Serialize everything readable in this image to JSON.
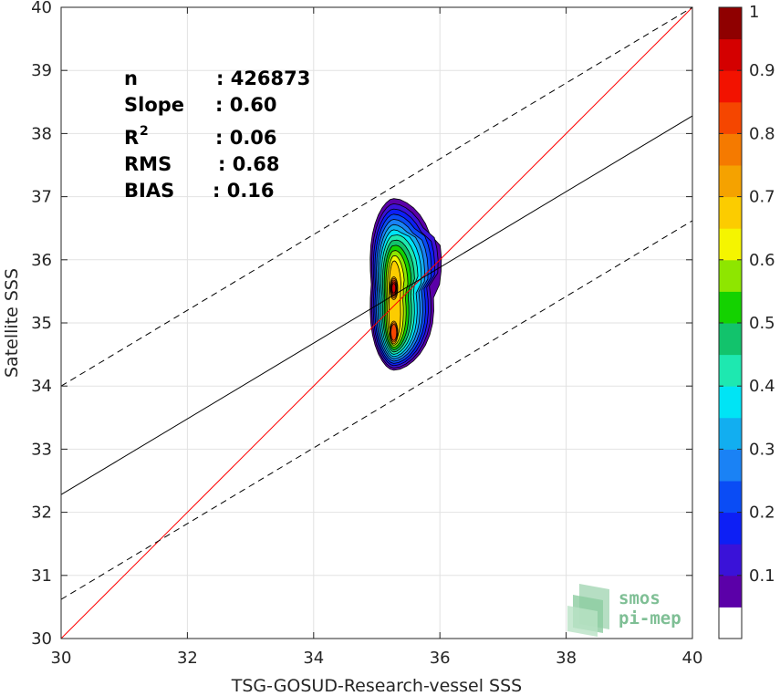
{
  "chart_data": {
    "type": "contour-scatter",
    "xlabel": "TSG-GOSUD-Research-vessel SSS",
    "ylabel": "Satellite SSS",
    "xlim": [
      30,
      40
    ],
    "ylim": [
      30,
      40
    ],
    "xticks": [
      "30",
      "32",
      "34",
      "36",
      "38",
      "40"
    ],
    "yticks": [
      "30",
      "31",
      "32",
      "33",
      "34",
      "35",
      "36",
      "37",
      "38",
      "39",
      "40"
    ],
    "grid": true,
    "stats": [
      {
        "label": "n",
        "sup": "",
        "value": ": 426873"
      },
      {
        "label": "Slope",
        "sup": "",
        "value": ": 0.60"
      },
      {
        "label": "R",
        "sup": "2",
        "value": ": 0.06"
      },
      {
        "label": "RMS",
        "sup": "",
        "value": ": 0.68"
      },
      {
        "label": "BIAS",
        "sup": "",
        "value": ": 0.16"
      }
    ],
    "lines": [
      {
        "role": "one-to-one",
        "color": "#ff0000",
        "style": "solid",
        "x": [
          30,
          40
        ],
        "y": [
          30,
          40
        ]
      },
      {
        "role": "regression",
        "color": "#000000",
        "style": "solid",
        "x": [
          30,
          40
        ],
        "y": [
          32.28,
          38.28
        ]
      },
      {
        "role": "regression-plus-offset",
        "color": "#000000",
        "style": "dashed",
        "x": [
          30,
          40
        ],
        "y": [
          34.0,
          40.0
        ]
      },
      {
        "role": "regression-minus-offset",
        "color": "#000000",
        "style": "dashed",
        "x": [
          30,
          40
        ],
        "y": [
          30.62,
          36.62
        ]
      }
    ],
    "density": {
      "center_x": 35.27,
      "outer_extent": {
        "x": [
          34.85,
          35.98
        ],
        "y": [
          34.25,
          36.97
        ]
      },
      "peaks": [
        {
          "x": 35.27,
          "y": 35.55,
          "level": 0.95
        },
        {
          "x": 35.27,
          "y": 34.85,
          "level": 0.85
        },
        {
          "x": 35.27,
          "y": 36.2,
          "level": 0.6
        }
      ]
    },
    "colorbar": {
      "ticks": [
        "0.1",
        "0.2",
        "0.3",
        "0.4",
        "0.5",
        "0.6",
        "0.7",
        "0.8",
        "0.9",
        "1"
      ],
      "colors": [
        "#ffffff",
        "#5b00a8",
        "#3a12d8",
        "#0d1ff5",
        "#0a4cf5",
        "#1a82f5",
        "#12aef0",
        "#00e4f5",
        "#1ee8b0",
        "#12c36c",
        "#14d200",
        "#8ee600",
        "#f5f500",
        "#fccc00",
        "#f5a200",
        "#f57a00",
        "#f54600",
        "#f21200",
        "#d40000",
        "#8f0000"
      ]
    }
  },
  "logo": {
    "line1": "smos",
    "line2": "pi-mep"
  }
}
